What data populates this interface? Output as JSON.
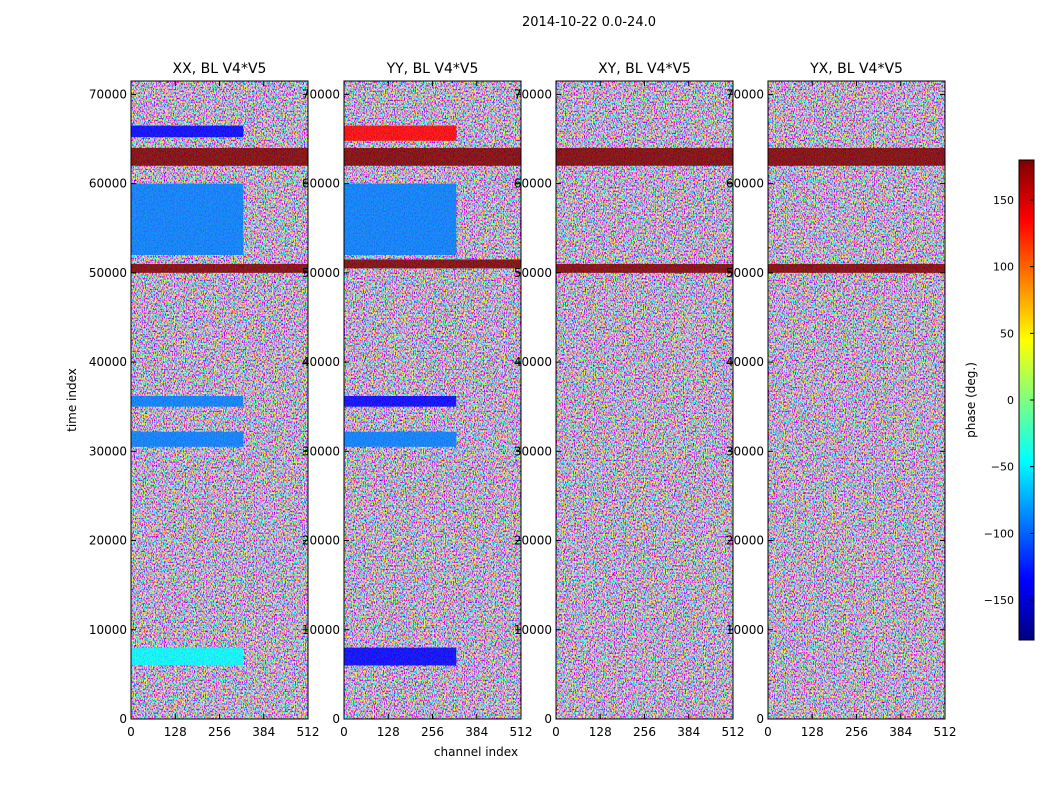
{
  "figure": {
    "suptitle": "2014-10-22 0.0-24.0",
    "ylabel": "time index",
    "xlabel": "channel index"
  },
  "colorbar": {
    "label": "phase (deg.)",
    "range": [
      -180,
      180
    ],
    "ticks": [
      150,
      100,
      50,
      0,
      -50,
      -100,
      -150
    ],
    "tick_labels": [
      "150",
      "100",
      "50",
      "0",
      "−50",
      "−100",
      "−150"
    ],
    "stops": [
      "#00007f",
      "#0000ff",
      "#007fff",
      "#00ffff",
      "#7fff7f",
      "#ffff00",
      "#ff7f00",
      "#ff0000",
      "#7f0000"
    ]
  },
  "chart_data": [
    {
      "type": "heatmap",
      "title": "XX, BL V4*V5",
      "xlim": [
        0,
        512
      ],
      "ylim": [
        0,
        71500
      ],
      "xticks": [
        0,
        128,
        256,
        384,
        512
      ],
      "yticks": [
        0,
        10000,
        20000,
        30000,
        40000,
        50000,
        60000,
        70000
      ],
      "value": "phase (deg.)",
      "structure": [
        {
          "rows": [
            62000,
            64000
          ],
          "channels": [
            0,
            512
          ],
          "phase": 175
        },
        {
          "rows": [
            65200,
            66500
          ],
          "channels": [
            0,
            325
          ],
          "phase": -130
        },
        {
          "rows": [
            52000,
            60000
          ],
          "channels": [
            0,
            325
          ],
          "phase": -70
        },
        {
          "rows": [
            50000,
            51000
          ],
          "channels": [
            0,
            512
          ],
          "phase": 175
        },
        {
          "rows": [
            30500,
            32200
          ],
          "channels": [
            0,
            325
          ],
          "phase": -80
        },
        {
          "rows": [
            35000,
            36200
          ],
          "channels": [
            0,
            325
          ],
          "phase": -90
        },
        {
          "rows": [
            6000,
            8000
          ],
          "channels": [
            0,
            325
          ],
          "phase": -50
        }
      ]
    },
    {
      "type": "heatmap",
      "title": "YY, BL V4*V5",
      "xlim": [
        0,
        512
      ],
      "ylim": [
        0,
        71500
      ],
      "xticks": [
        0,
        128,
        256,
        384,
        512
      ],
      "yticks": [
        0,
        10000,
        20000,
        30000,
        40000,
        50000,
        60000,
        70000
      ],
      "value": "phase (deg.)",
      "structure": [
        {
          "rows": [
            62000,
            64000
          ],
          "channels": [
            0,
            512
          ],
          "phase": 175
        },
        {
          "rows": [
            64800,
            66500
          ],
          "channels": [
            0,
            325
          ],
          "phase": 130
        },
        {
          "rows": [
            52000,
            60000
          ],
          "channels": [
            0,
            325
          ],
          "phase": -110
        },
        {
          "rows": [
            50500,
            51500
          ],
          "channels": [
            0,
            512
          ],
          "phase": 160
        },
        {
          "rows": [
            30500,
            32200
          ],
          "channels": [
            0,
            325
          ],
          "phase": -90
        },
        {
          "rows": [
            35000,
            36200
          ],
          "channels": [
            0,
            325
          ],
          "phase": -120
        },
        {
          "rows": [
            6000,
            8000
          ],
          "channels": [
            0,
            325
          ],
          "phase": -140
        }
      ]
    },
    {
      "type": "heatmap",
      "title": "XY, BL V4*V5",
      "xlim": [
        0,
        512
      ],
      "ylim": [
        0,
        71500
      ],
      "xticks": [
        0,
        128,
        256,
        384,
        512
      ],
      "yticks": [
        0,
        10000,
        20000,
        30000,
        40000,
        50000,
        60000,
        70000
      ],
      "value": "phase (deg.)",
      "structure": [
        {
          "rows": [
            62000,
            64000
          ],
          "channels": [
            0,
            512
          ],
          "phase": 175
        },
        {
          "rows": [
            50000,
            51000
          ],
          "channels": [
            0,
            512
          ],
          "phase": 175
        }
      ]
    },
    {
      "type": "heatmap",
      "title": "YX, BL V4*V5",
      "xlim": [
        0,
        512
      ],
      "ylim": [
        0,
        71500
      ],
      "xticks": [
        0,
        128,
        256,
        384,
        512
      ],
      "yticks": [
        0,
        10000,
        20000,
        30000,
        40000,
        50000,
        60000,
        70000
      ],
      "value": "phase (deg.)",
      "structure": [
        {
          "rows": [
            62000,
            64000
          ],
          "channels": [
            0,
            512
          ],
          "phase": 175
        },
        {
          "rows": [
            50000,
            51000
          ],
          "channels": [
            0,
            512
          ],
          "phase": 175
        }
      ]
    }
  ]
}
